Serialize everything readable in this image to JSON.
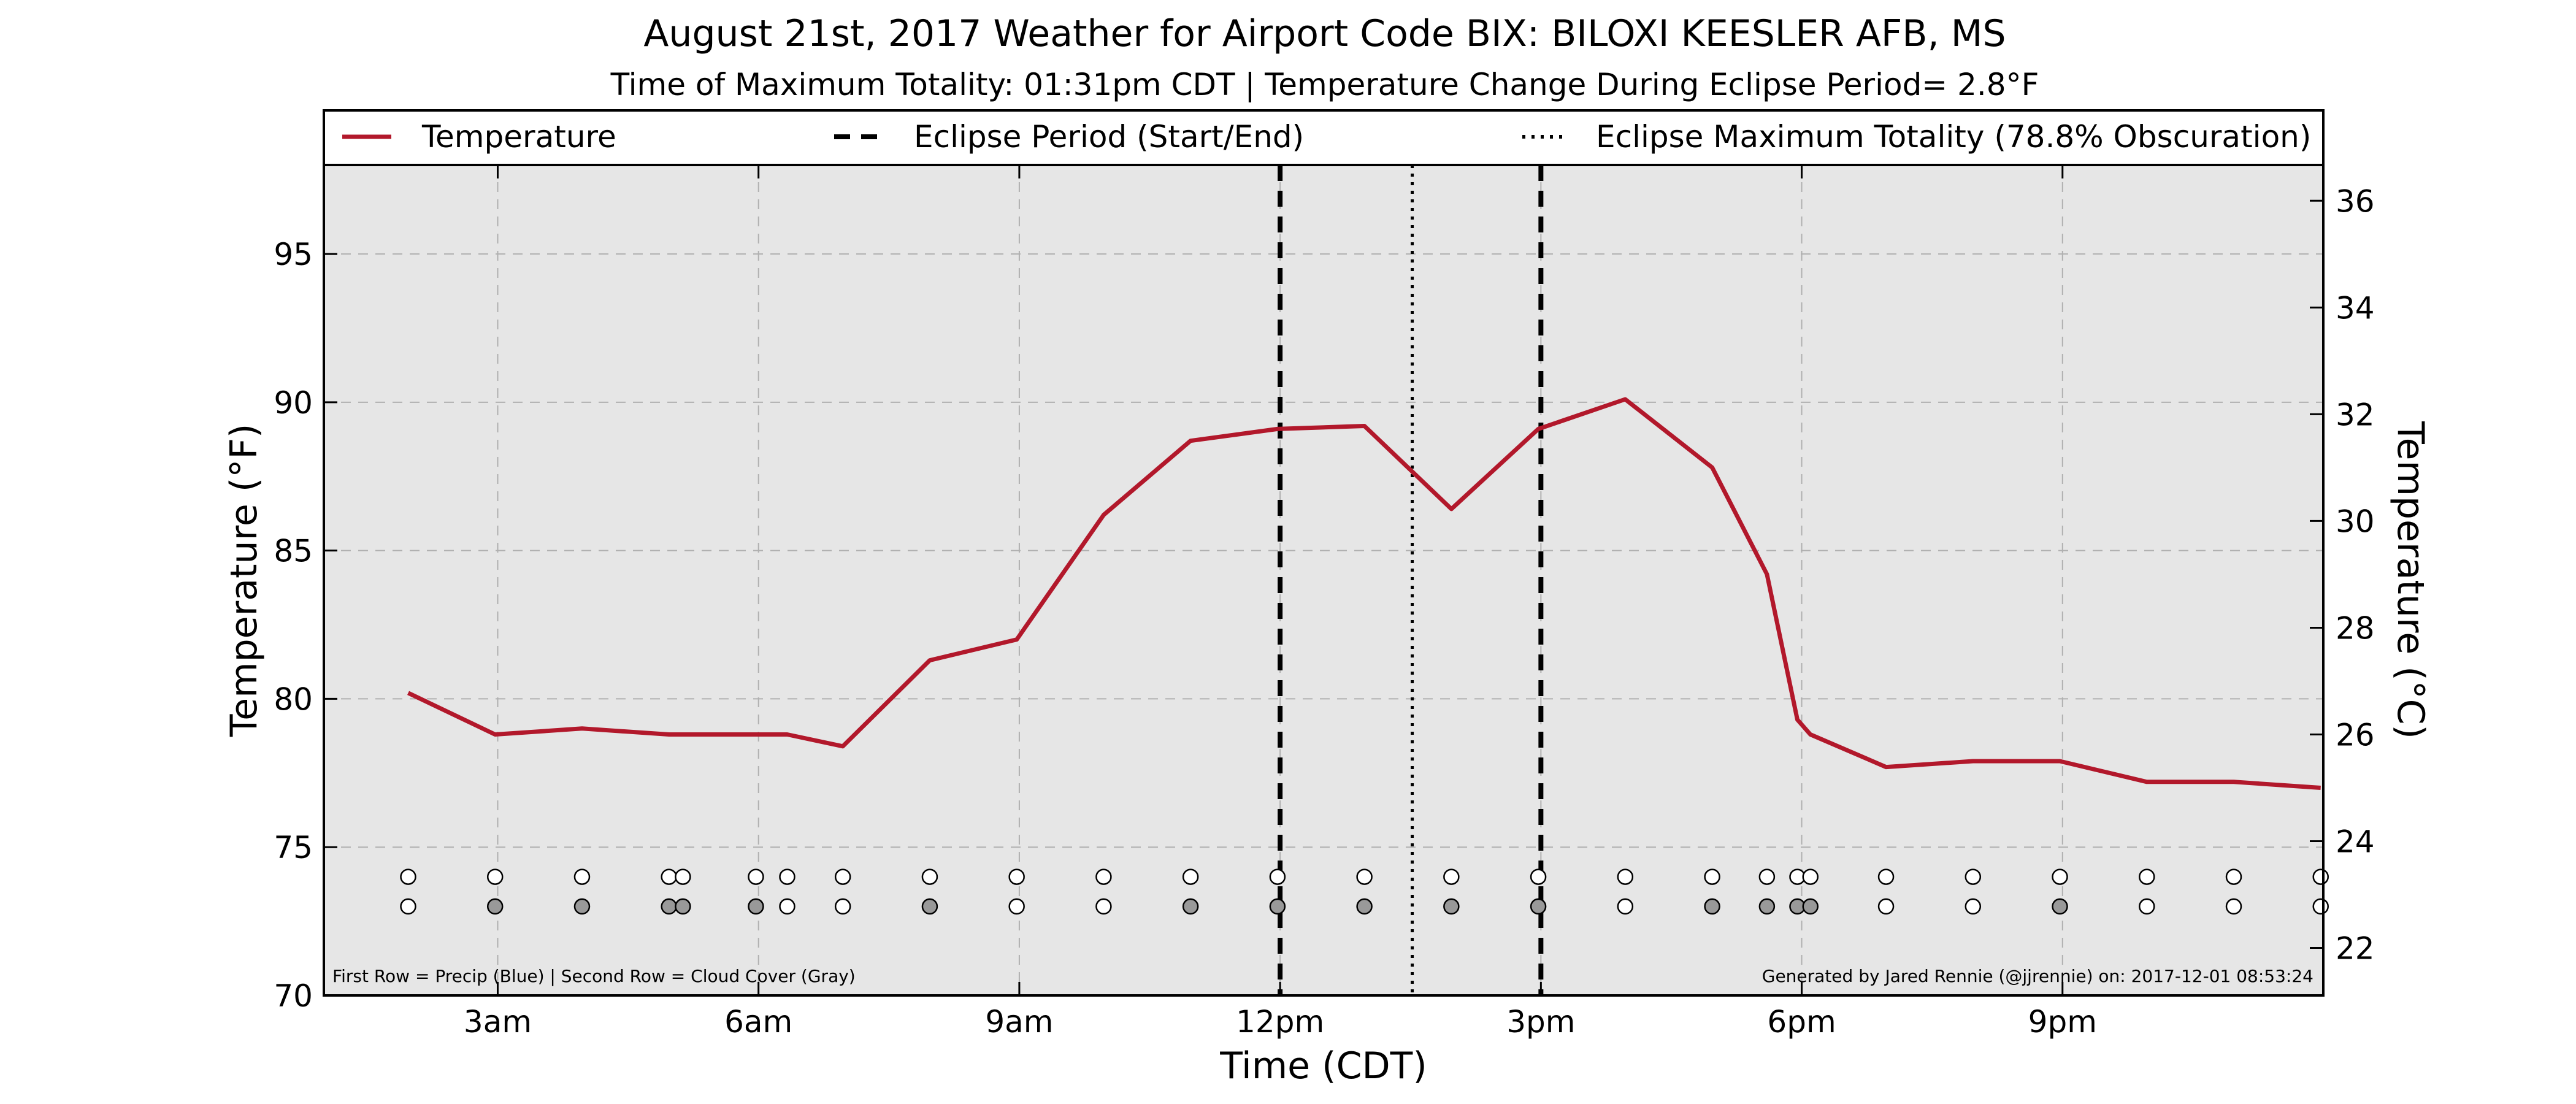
{
  "chart_data": {
    "type": "line",
    "title": "August 21st, 2017 Weather for Airport Code BIX: BILOXI KEESLER AFB, MS",
    "subtitle": "Time of Maximum Totality: 01:31pm CDT | Temperature Change During Eclipse Period= 2.8°F",
    "xlabel": "Time (CDT)",
    "ylabel": "Temperature (°F)",
    "ylabel_right": "Temperature (°C)",
    "xlim": [
      1.0,
      24.0
    ],
    "ylim": [
      70,
      98
    ],
    "ylim_right": [
      21.11,
      36.67
    ],
    "x_ticks": [
      {
        "value": 3,
        "label": "3am"
      },
      {
        "value": 6,
        "label": "6am"
      },
      {
        "value": 9,
        "label": "9am"
      },
      {
        "value": 12,
        "label": "12pm"
      },
      {
        "value": 15,
        "label": "3pm"
      },
      {
        "value": 18,
        "label": "6pm"
      },
      {
        "value": 21,
        "label": "9pm"
      }
    ],
    "y_ticks": [
      70,
      75,
      80,
      85,
      90,
      95
    ],
    "y_ticks_right": [
      22,
      24,
      26,
      28,
      30,
      32,
      34,
      36
    ],
    "grid": true,
    "legend_position": "top",
    "series": [
      {
        "name": "Temperature",
        "color": "#b2182b",
        "x": [
          1.97,
          2.97,
          3.97,
          4.97,
          5.97,
          6.33,
          6.97,
          7.97,
          8.97,
          9.97,
          10.97,
          11.97,
          12.97,
          13.97,
          14.97,
          15.97,
          16.97,
          17.6,
          17.95,
          18.1,
          18.97,
          19.97,
          20.97,
          21.97,
          22.97,
          23.97
        ],
        "y": [
          80.2,
          78.8,
          79.0,
          78.8,
          78.8,
          78.8,
          78.4,
          81.3,
          82.0,
          86.2,
          88.7,
          89.1,
          89.2,
          86.4,
          89.1,
          90.1,
          87.8,
          84.2,
          79.3,
          78.8,
          77.7,
          77.9,
          77.9,
          77.2,
          77.2,
          77.0
        ]
      }
    ],
    "reference_lines": [
      {
        "name": "Eclipse Period (Start/End)",
        "style": "dashed",
        "x": [
          12.0,
          15.0
        ]
      },
      {
        "name": "Eclipse Maximum Totality (78.8% Obscuration)",
        "style": "dotted",
        "x": [
          13.52
        ]
      }
    ],
    "markers": {
      "precip_row": {
        "y": 74.0,
        "x": [
          1.97,
          2.97,
          3.97,
          4.97,
          5.13,
          5.97,
          6.33,
          6.97,
          7.97,
          8.97,
          9.97,
          10.97,
          11.97,
          12.97,
          13.97,
          14.97,
          15.97,
          16.97,
          17.6,
          17.95,
          18.1,
          18.97,
          19.97,
          20.97,
          21.97,
          22.97,
          23.97
        ],
        "fill": [
          "#ffffff",
          "#ffffff",
          "#ffffff",
          "#ffffff",
          "#ffffff",
          "#ffffff",
          "#ffffff",
          "#ffffff",
          "#ffffff",
          "#ffffff",
          "#ffffff",
          "#ffffff",
          "#ffffff",
          "#ffffff",
          "#ffffff",
          "#ffffff",
          "#ffffff",
          "#ffffff",
          "#ffffff",
          "#ffffff",
          "#ffffff",
          "#ffffff",
          "#ffffff",
          "#ffffff",
          "#ffffff",
          "#ffffff",
          "#ffffff"
        ]
      },
      "cloud_row": {
        "y": 73.0,
        "x": [
          1.97,
          2.97,
          3.97,
          4.97,
          5.13,
          5.97,
          6.33,
          6.97,
          7.97,
          8.97,
          9.97,
          10.97,
          11.97,
          12.97,
          13.97,
          14.97,
          15.97,
          16.97,
          17.6,
          17.95,
          18.1,
          18.97,
          19.97,
          20.97,
          21.97,
          22.97,
          23.97
        ],
        "fill": [
          "#ffffff",
          "#999999",
          "#999999",
          "#999999",
          "#999999",
          "#999999",
          "#ffffff",
          "#ffffff",
          "#999999",
          "#ffffff",
          "#ffffff",
          "#999999",
          "#999999",
          "#999999",
          "#999999",
          "#999999",
          "#ffffff",
          "#999999",
          "#999999",
          "#999999",
          "#999999",
          "#ffffff",
          "#ffffff",
          "#999999",
          "#ffffff",
          "#ffffff",
          "#ffffff"
        ]
      }
    },
    "footnote_left": "First Row = Precip (Blue) | Second Row = Cloud Cover (Gray)",
    "footnote_right": "Generated by Jared Rennie (@jjrennie) on: 2017-12-01 08:53:24",
    "colors": {
      "plot_background": "#e6e6e6",
      "grid": "#b0b0b0",
      "temperature": "#b2182b",
      "eclipse_lines": "#000000"
    }
  }
}
